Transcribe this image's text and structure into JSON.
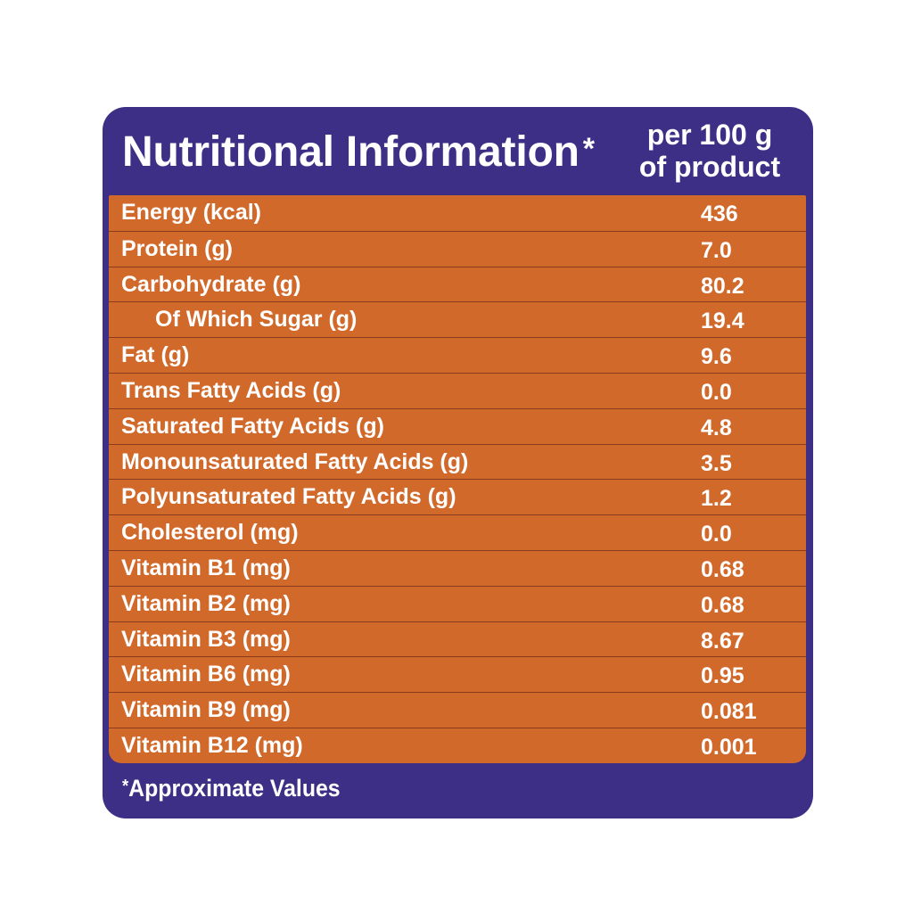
{
  "header": {
    "title": "Nutritional Information",
    "title_mark": "*",
    "unit_line1": "per 100 g",
    "unit_line2": "of product"
  },
  "rows": [
    {
      "label": "Energy (kcal)",
      "value": "436",
      "indent": false
    },
    {
      "label": "Protein (g)",
      "value": "7.0",
      "indent": false
    },
    {
      "label": "Carbohydrate (g)",
      "value": "80.2",
      "indent": false
    },
    {
      "label": "Of Which Sugar (g)",
      "value": "19.4",
      "indent": true
    },
    {
      "label": "Fat (g)",
      "value": "9.6",
      "indent": false
    },
    {
      "label": "Trans Fatty Acids (g)",
      "value": "0.0",
      "indent": false
    },
    {
      "label": "Saturated Fatty Acids (g)",
      "value": "4.8",
      "indent": false
    },
    {
      "label": "Monounsaturated Fatty Acids (g)",
      "value": "3.5",
      "indent": false
    },
    {
      "label": "Polyunsaturated Fatty Acids (g)",
      "value": "1.2",
      "indent": false
    },
    {
      "label": "Cholesterol (mg)",
      "value": "0.0",
      "indent": false
    },
    {
      "label": "Vitamin B1 (mg)",
      "value": "0.68",
      "indent": false
    },
    {
      "label": "Vitamin B2 (mg)",
      "value": "0.68",
      "indent": false
    },
    {
      "label": "Vitamin B3 (mg)",
      "value": "8.67",
      "indent": false
    },
    {
      "label": "Vitamin B6 (mg)",
      "value": "0.95",
      "indent": false
    },
    {
      "label": "Vitamin B9 (mg)",
      "value": "0.081",
      "indent": false
    },
    {
      "label": "Vitamin B12 (mg)",
      "value": "0.001",
      "indent": false
    }
  ],
  "footnote": {
    "mark": "*",
    "text": "Approximate Values"
  },
  "colors": {
    "panel": "#3e2f86",
    "table": "#d1692b",
    "divider": "#8a3d1e",
    "text": "#ffffff"
  }
}
